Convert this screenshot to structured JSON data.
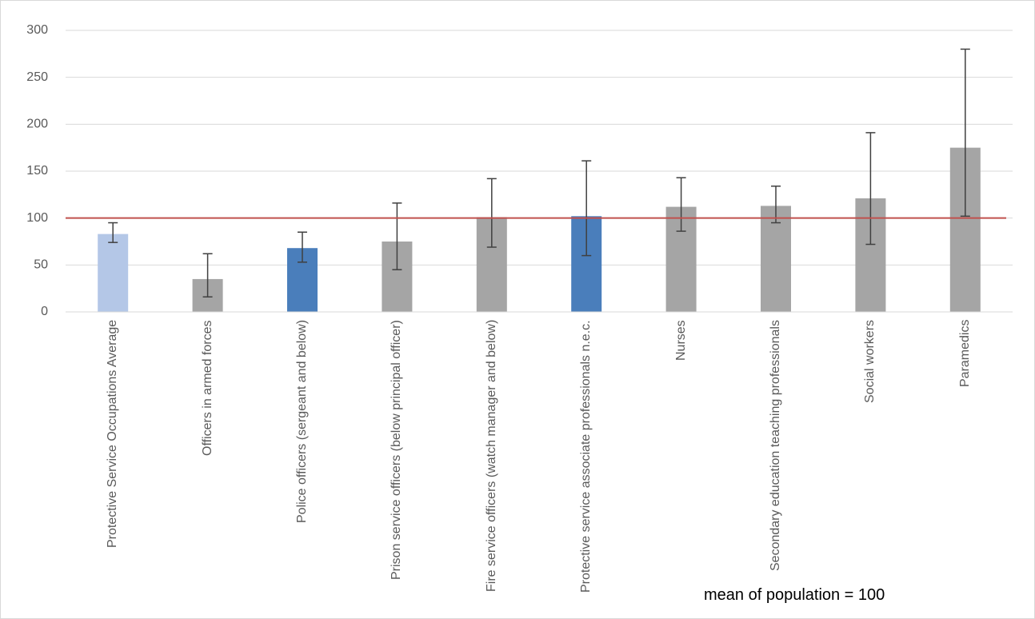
{
  "chart_data": {
    "type": "bar",
    "categories": [
      "Protective Service Occupations Average",
      "Officers in armed forces",
      "Police officers (sergeant and below)",
      "Prison service officers (below principal officer)",
      "Fire service officers (watch manager and below)",
      "Protective service associate professionals n.e.c.",
      "Nurses",
      "Secondary education teaching professionals",
      "Social workers",
      "Paramedics"
    ],
    "values": [
      83,
      35,
      68,
      75,
      101,
      102,
      112,
      113,
      121,
      175
    ],
    "lower": [
      74,
      16,
      53,
      45,
      69,
      60,
      86,
      95,
      72,
      102
    ],
    "upper": [
      95,
      62,
      85,
      116,
      142,
      161,
      143,
      134,
      191,
      280
    ],
    "colors": [
      "#b4c7e7",
      "#a5a5a5",
      "#4a7ebb",
      "#a5a5a5",
      "#a5a5a5",
      "#4a7ebb",
      "#a5a5a5",
      "#a5a5a5",
      "#a5a5a5",
      "#a5a5a5"
    ],
    "ylim": [
      0,
      300
    ],
    "yticks": [
      0,
      50,
      100,
      150,
      200,
      250,
      300
    ],
    "grid": true,
    "reference_line": 100,
    "reference_color": "#c0504d",
    "annotation": "mean of population = 100"
  }
}
